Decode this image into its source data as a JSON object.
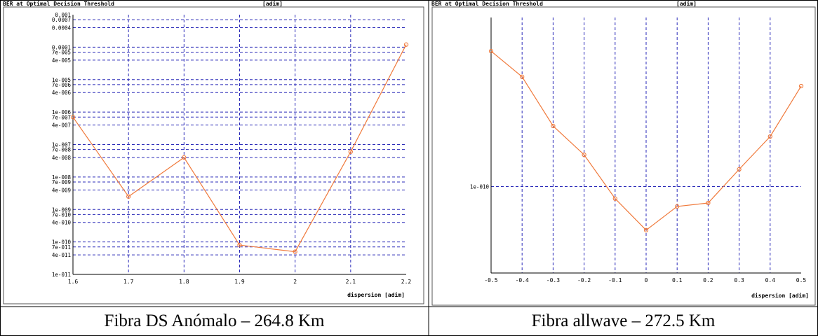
{
  "figure": {
    "captions": [
      "Fibra DS Anómalo – 264.8 Km",
      "Fibra allwave – 272.5 Km"
    ]
  },
  "chart_data": [
    {
      "type": "line",
      "title": "BER at Optimal Decision Threshold",
      "unit_label": "[adim]",
      "xlabel": "dispersion [adim]",
      "y_scale": "log",
      "xlim": [
        1.6,
        2.2
      ],
      "ylim": [
        1e-11,
        0.001
      ],
      "x_ticks": [
        "1.6",
        "1.7",
        "1.8",
        "1.9",
        "2",
        "2.1",
        "2.2"
      ],
      "y_tick_labels": [
        "0.001",
        "0.0007",
        "0.0004",
        "0.0001",
        "7e-005",
        "4e-005",
        "1e-005",
        "7e-006",
        "4e-006",
        "1e-006",
        "7e-007",
        "4e-007",
        "1e-007",
        "7e-008",
        "4e-008",
        "1e-008",
        "7e-009",
        "4e-009",
        "1e-009",
        "7e-010",
        "4e-010",
        "1e-010",
        "7e-011",
        "4e-011",
        "1e-011"
      ],
      "grid": true,
      "color": "#f07a3c",
      "x": [
        1.6,
        1.7,
        1.8,
        1.9,
        2.0,
        2.1,
        2.2
      ],
      "y": [
        7e-07,
        2.5e-09,
        4e-08,
        8e-11,
        5e-11,
        6e-08,
        0.00012
      ]
    },
    {
      "type": "line",
      "title": "BER at Optimal Decision Threshold",
      "unit_label": "[adim]",
      "xlabel": "dispersion [adim]",
      "y_scale": "log",
      "xlim": [
        -0.5,
        0.5
      ],
      "ylim": [
        4e-11,
        6e-10
      ],
      "x_ticks": [
        "-0.5",
        "-0.4",
        "-0.3",
        "-0.2",
        "-0.1",
        "0",
        "0.1",
        "0.2",
        "0.3",
        "0.4",
        "0.5"
      ],
      "y_tick_labels": [
        "1e-010"
      ],
      "grid": true,
      "color": "#f07a3c",
      "x": [
        -0.5,
        -0.4,
        -0.3,
        -0.2,
        -0.1,
        0,
        0.1,
        0.2,
        0.3,
        0.4,
        0.5
      ],
      "y": [
        4.2e-10,
        3.2e-10,
        1.9e-10,
        1.4e-10,
        8.8e-11,
        6.3e-11,
        8.1e-11,
        8.4e-11,
        1.2e-10,
        1.7e-10,
        2.9e-10
      ]
    }
  ]
}
